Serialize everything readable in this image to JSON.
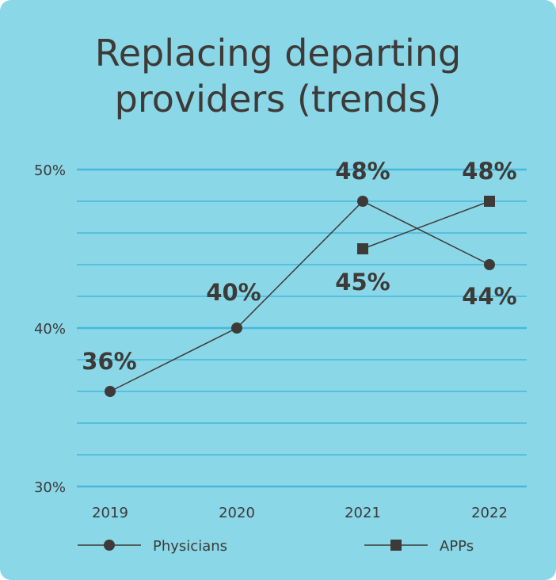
{
  "chart_data": {
    "type": "line",
    "title": "Replacing departing providers (trends)",
    "title_lines": [
      "Replacing departing",
      "providers (trends)"
    ],
    "categories": [
      "2019",
      "2020",
      "2021",
      "2022"
    ],
    "ylim": [
      30,
      50
    ],
    "yticks": [
      30,
      40,
      50
    ],
    "ytick_labels": [
      "30%",
      "40%",
      "50%"
    ],
    "grid": true,
    "grid_step": 2,
    "legend_position": "bottom",
    "series": [
      {
        "name": "Physicians",
        "marker": "circle",
        "values": [
          36,
          40,
          48,
          44
        ],
        "labels": [
          "36%",
          "40%",
          "48%",
          "44%"
        ]
      },
      {
        "name": "APPs",
        "marker": "square",
        "values": [
          null,
          null,
          45,
          48
        ],
        "labels": [
          null,
          null,
          "45%",
          "48%"
        ]
      }
    ],
    "colors": {
      "background": "#8ad7e8",
      "grid": "#45b8dc",
      "ink": "#3d3a37"
    }
  }
}
